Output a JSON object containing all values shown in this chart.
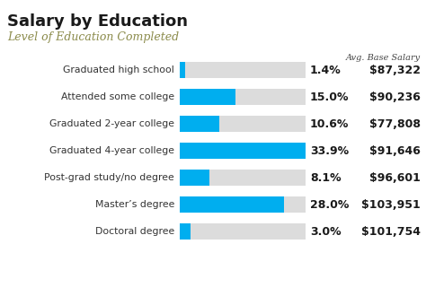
{
  "title": "Salary by Education",
  "subtitle": "Level of Education Completed",
  "avg_label": "Avg. Base Salary",
  "categories": [
    "Graduated high school",
    "Attended some college",
    "Graduated 2-year college",
    "Graduated 4-year college",
    "Post-grad study/no degree",
    "Master’s degree",
    "Doctoral degree"
  ],
  "percentages": [
    1.4,
    15.0,
    10.6,
    33.9,
    8.1,
    28.0,
    3.0
  ],
  "salaries": [
    "$87,322",
    "$90,236",
    "$77,808",
    "$91,646",
    "$96,601",
    "$103,951",
    "$101,754"
  ],
  "bar_color": "#00AEEF",
  "bar_bg_color": "#DCDCDC",
  "max_pct": 33.9,
  "title_color": "#1a1a1a",
  "subtitle_color": "#8B8B4B",
  "bg_color": "#FFFFFF",
  "label_color": "#333333",
  "pct_color": "#1a1a1a",
  "salary_color": "#1a1a1a"
}
